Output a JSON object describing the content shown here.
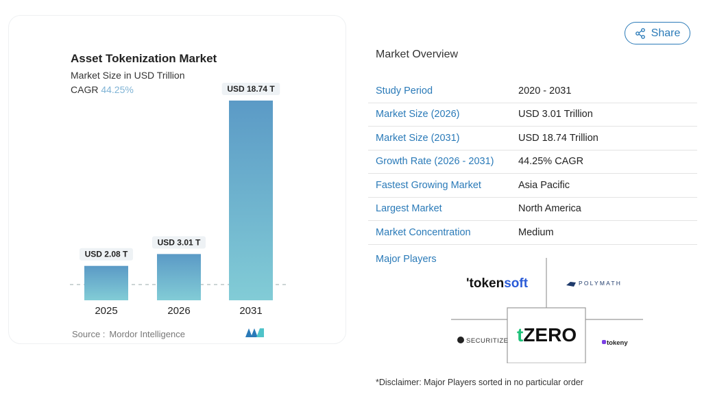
{
  "chart_data": {
    "type": "bar",
    "title": "Asset Tokenization Market",
    "subtitle": "Market Size in USD Trillion",
    "cagr_label": "CAGR",
    "cagr_value": "44.25%",
    "categories": [
      "2025",
      "2026",
      "2031"
    ],
    "values": [
      2.08,
      3.01,
      18.74
    ],
    "data_labels": [
      "USD 2.08 T",
      "USD 3.01 T",
      "USD 18.74 T"
    ],
    "source_label": "Source :",
    "source_value": "Mordor Intelligence",
    "colors": {
      "bar_top": "#5b9ac6",
      "bar_bottom": "#82ccd6",
      "cagr": "#7fb3d5"
    }
  },
  "share_label": "Share",
  "overview": {
    "title": "Market Overview",
    "rows": [
      {
        "label": "Study Period",
        "value": "2020 - 2031"
      },
      {
        "label": "Market Size (2026)",
        "value": "USD 3.01 Trillion"
      },
      {
        "label": "Market Size (2031)",
        "value": "USD 18.74 Trillion"
      },
      {
        "label": "Growth Rate (2026 - 2031)",
        "value": "44.25% CAGR"
      },
      {
        "label": "Fastest Growing Market",
        "value": "Asia Pacific"
      },
      {
        "label": "Largest Market",
        "value": "North America"
      },
      {
        "label": "Market Concentration",
        "value": "Medium"
      }
    ],
    "major_players_label": "Major Players",
    "players": [
      "tokensoft",
      "POLYMATH",
      "SECURITIZE",
      "tZERO",
      "tokeny"
    ],
    "disclaimer": "*Disclaimer: Major Players sorted in no particular order"
  },
  "accent_color": "#2a7ab8"
}
